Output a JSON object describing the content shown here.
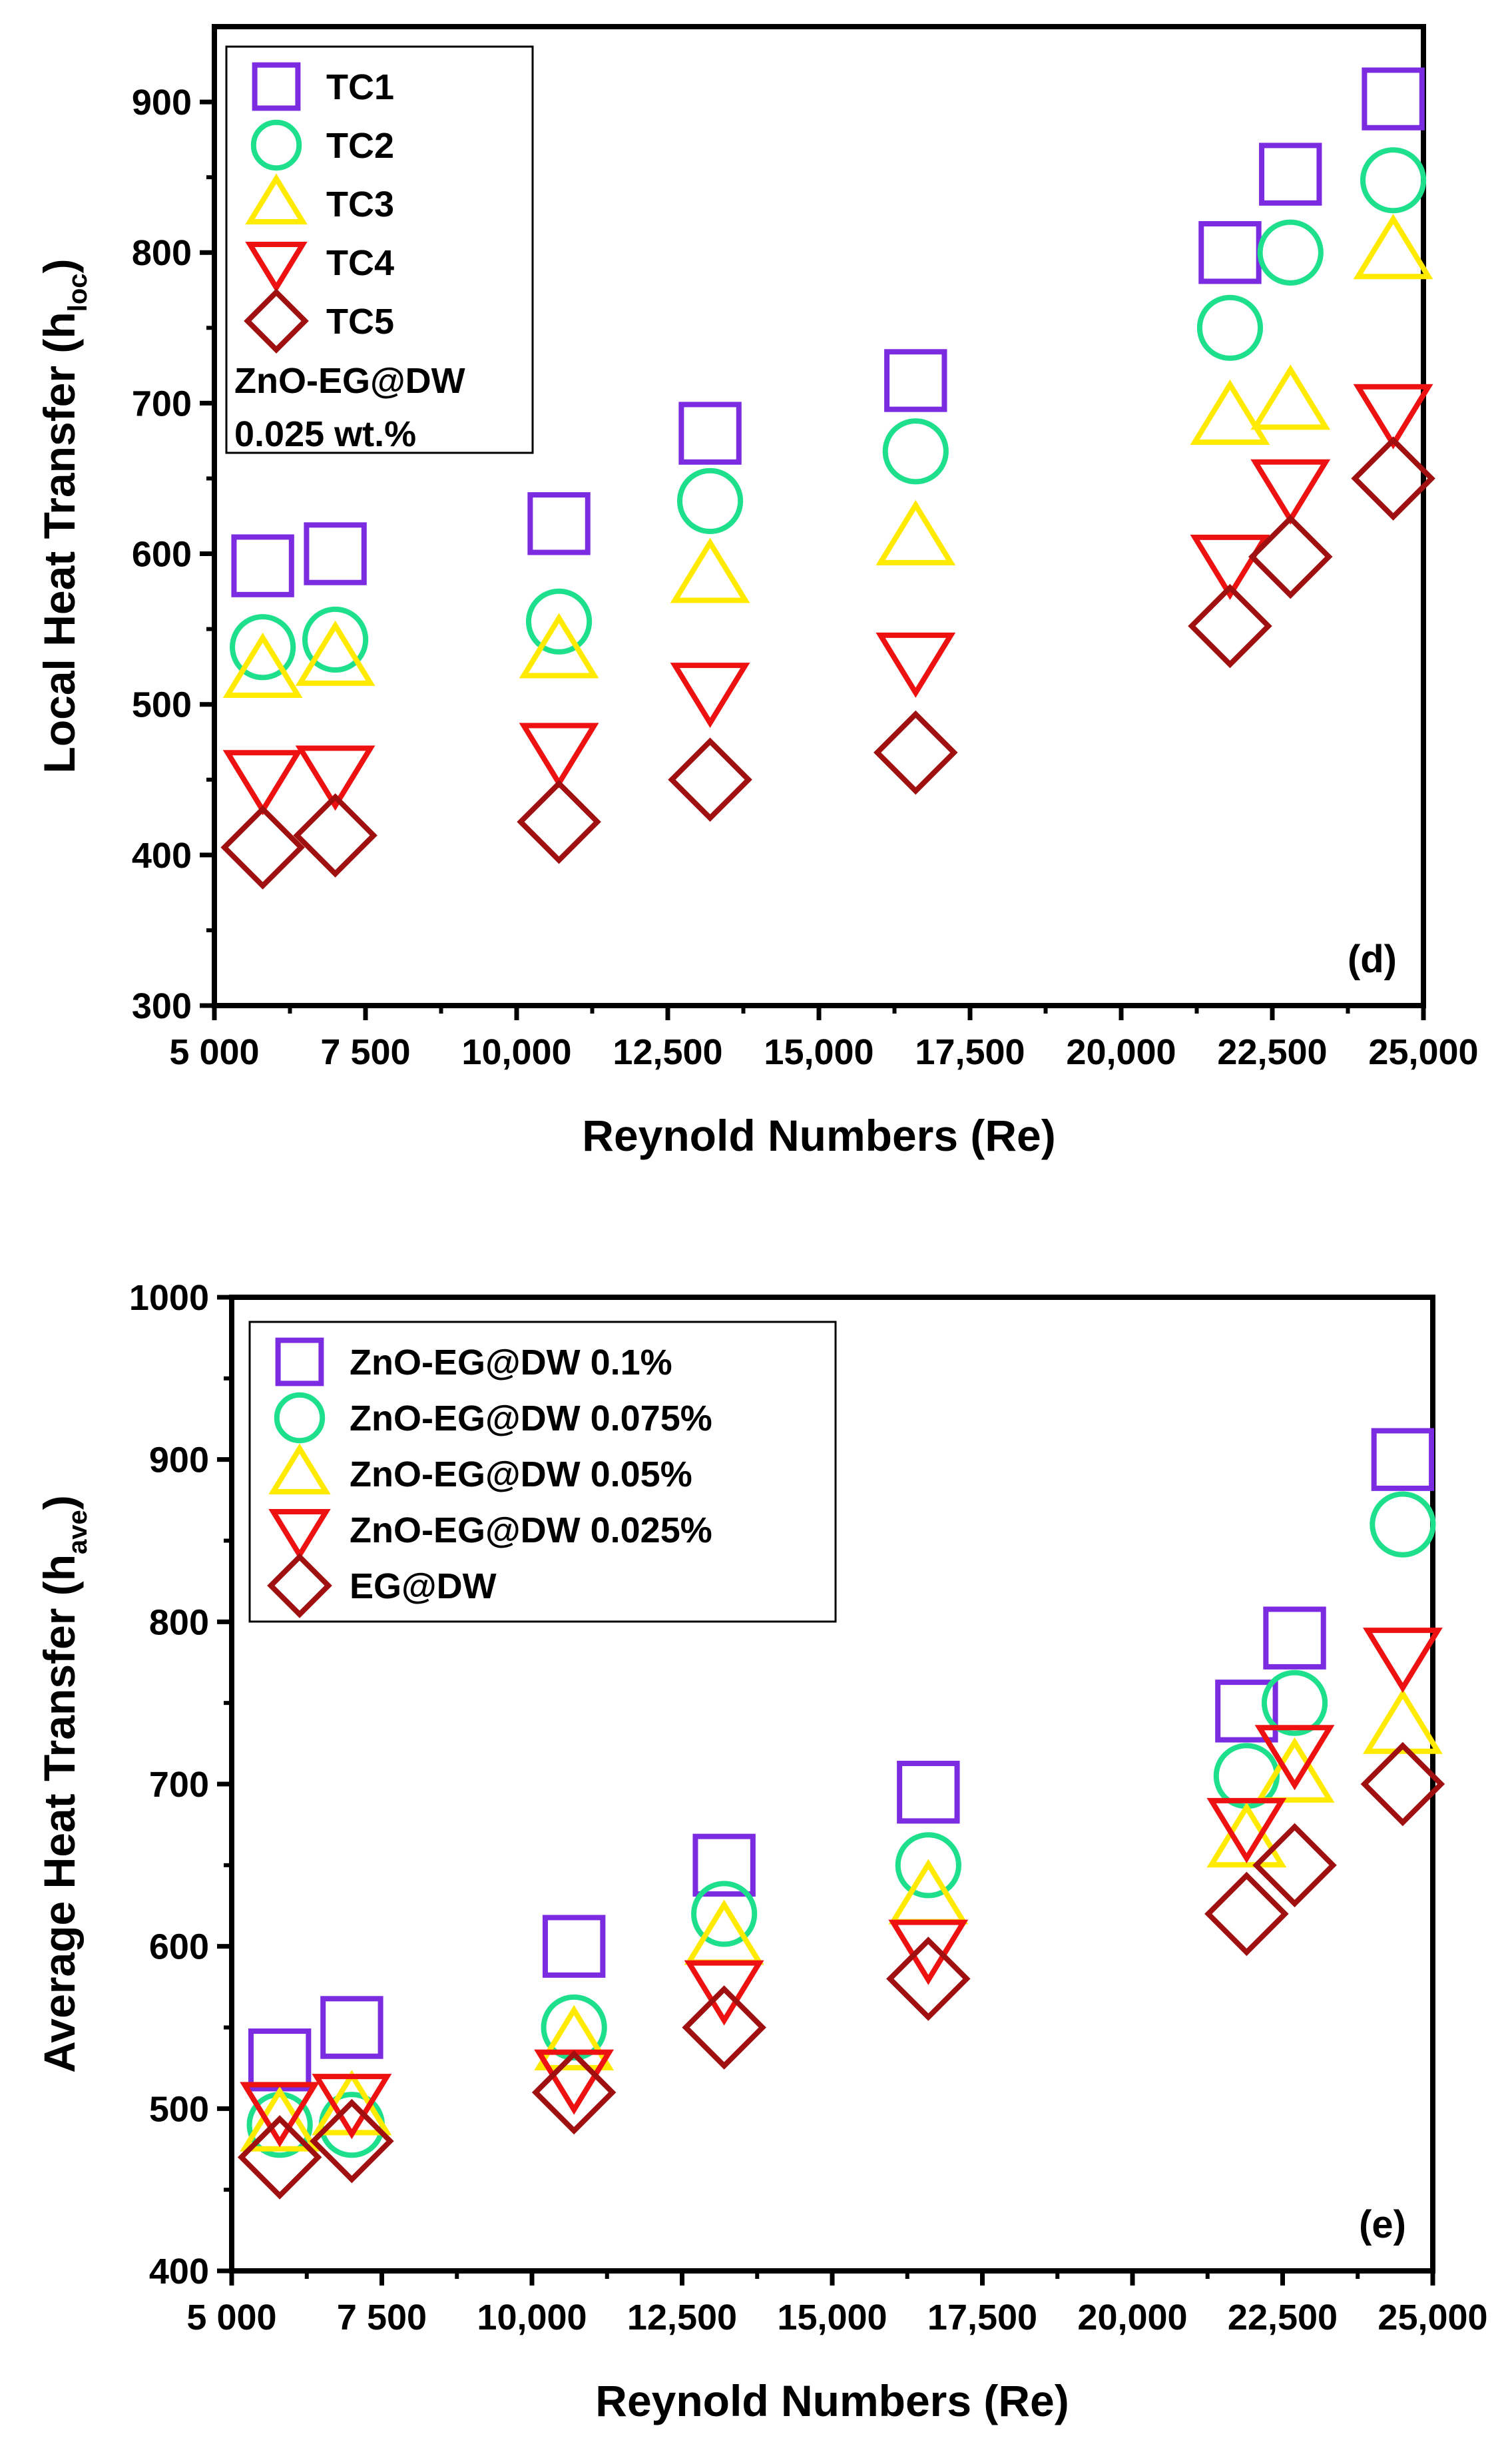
{
  "chart_data": [
    {
      "type": "scatter",
      "title": "",
      "panel_label": "(d)",
      "xlabel": "Reynold Numbers (Re)",
      "ylabel_main": "Local Heat Transfer (h",
      "ylabel_sub": "loc",
      "ylabel_end": ")",
      "xlim": [
        5000,
        25000
      ],
      "ylim": [
        300,
        950
      ],
      "x_ticks": [
        5000,
        7500,
        10000,
        12500,
        15000,
        17500,
        20000,
        22500,
        25000
      ],
      "x_tick_labels": [
        "5 000",
        "7 500",
        "10,000",
        "12,500",
        "15,000",
        "17,500",
        "20,000",
        "22,500",
        "25,000"
      ],
      "y_ticks": [
        300,
        400,
        500,
        600,
        700,
        800,
        900
      ],
      "y_tick_labels": [
        "300",
        "400",
        "500",
        "600",
        "700",
        "800",
        "900"
      ],
      "legend_position": "top-left",
      "annotation_lines": [
        "ZnO-EG@DW",
        "0.025 wt.%"
      ],
      "series": [
        {
          "name": "TC1",
          "marker": "square",
          "color": "#7B2BE0",
          "x": [
            5800,
            7000,
            10700,
            13200,
            16600,
            21800,
            22800,
            24500
          ],
          "y": [
            592,
            600,
            620,
            680,
            715,
            800,
            852,
            902
          ]
        },
        {
          "name": "TC2",
          "marker": "circle",
          "color": "#1EE08C",
          "x": [
            5800,
            7000,
            10700,
            13200,
            16600,
            21800,
            22800,
            24500
          ],
          "y": [
            538,
            543,
            555,
            635,
            668,
            750,
            800,
            848
          ]
        },
        {
          "name": "TC3",
          "marker": "triangle-up",
          "color": "#FFEA00",
          "x": [
            5800,
            7000,
            10700,
            13200,
            16600,
            21800,
            22800,
            24500
          ],
          "y": [
            522,
            530,
            535,
            585,
            610,
            690,
            700,
            800
          ]
        },
        {
          "name": "TC4",
          "marker": "triangle-down",
          "color": "#EE1111",
          "x": [
            5800,
            7000,
            10700,
            13200,
            16600,
            21800,
            22800,
            24500
          ],
          "y": [
            452,
            455,
            470,
            510,
            530,
            595,
            645,
            695
          ]
        },
        {
          "name": "TC5",
          "marker": "diamond",
          "color": "#A01010",
          "x": [
            5800,
            7000,
            10700,
            13200,
            16600,
            21800,
            22800,
            24500
          ],
          "y": [
            405,
            413,
            422,
            450,
            468,
            552,
            598,
            650
          ]
        }
      ]
    },
    {
      "type": "scatter",
      "title": "",
      "panel_label": "(e)",
      "xlabel": "Reynold Numbers (Re)",
      "ylabel_main": "Average Heat Transfer (h",
      "ylabel_sub": "ave",
      "ylabel_end": ")",
      "xlim": [
        5000,
        25000
      ],
      "ylim": [
        400,
        1000
      ],
      "x_ticks": [
        5000,
        7500,
        10000,
        12500,
        15000,
        17500,
        20000,
        22500,
        25000
      ],
      "x_tick_labels": [
        "5 000",
        "7 500",
        "10,000",
        "12,500",
        "15,000",
        "17,500",
        "20,000",
        "22,500",
        "25,000"
      ],
      "y_ticks": [
        400,
        500,
        600,
        700,
        800,
        900,
        1000
      ],
      "y_tick_labels": [
        "400",
        "500",
        "600",
        "700",
        "800",
        "900",
        "1000"
      ],
      "legend_position": "top-left",
      "annotation_lines": [],
      "series": [
        {
          "name": "ZnO-EG@DW 0.1%",
          "marker": "square",
          "color": "#7B2BE0",
          "x": [
            5800,
            7000,
            10700,
            13200,
            16600,
            21900,
            22700,
            24500
          ],
          "y": [
            530,
            550,
            600,
            650,
            695,
            745,
            790,
            900
          ]
        },
        {
          "name": "ZnO-EG@DW 0.075%",
          "marker": "circle",
          "color": "#1EE08C",
          "x": [
            5800,
            7000,
            10700,
            13200,
            16600,
            21900,
            22700,
            24500
          ],
          "y": [
            490,
            490,
            550,
            620,
            650,
            705,
            750,
            860
          ]
        },
        {
          "name": "ZnO-EG@DW 0.05%",
          "marker": "triangle-up",
          "color": "#FFEA00",
          "x": [
            5800,
            7000,
            10700,
            13200,
            16600,
            21900,
            22700,
            24500
          ],
          "y": [
            490,
            500,
            540,
            605,
            630,
            665,
            705,
            735
          ]
        },
        {
          "name": "ZnO-EG@DW 0.025%",
          "marker": "triangle-down",
          "color": "#EE1111",
          "x": [
            5800,
            7000,
            10700,
            13200,
            16600,
            21900,
            22700,
            24500
          ],
          "y": [
            500,
            505,
            520,
            575,
            600,
            675,
            720,
            780
          ]
        },
        {
          "name": "EG@DW",
          "marker": "diamond",
          "color": "#A01010",
          "x": [
            5800,
            7000,
            10700,
            13200,
            16600,
            21900,
            22700,
            24500
          ],
          "y": [
            470,
            480,
            510,
            550,
            580,
            620,
            650,
            700
          ]
        }
      ]
    }
  ]
}
